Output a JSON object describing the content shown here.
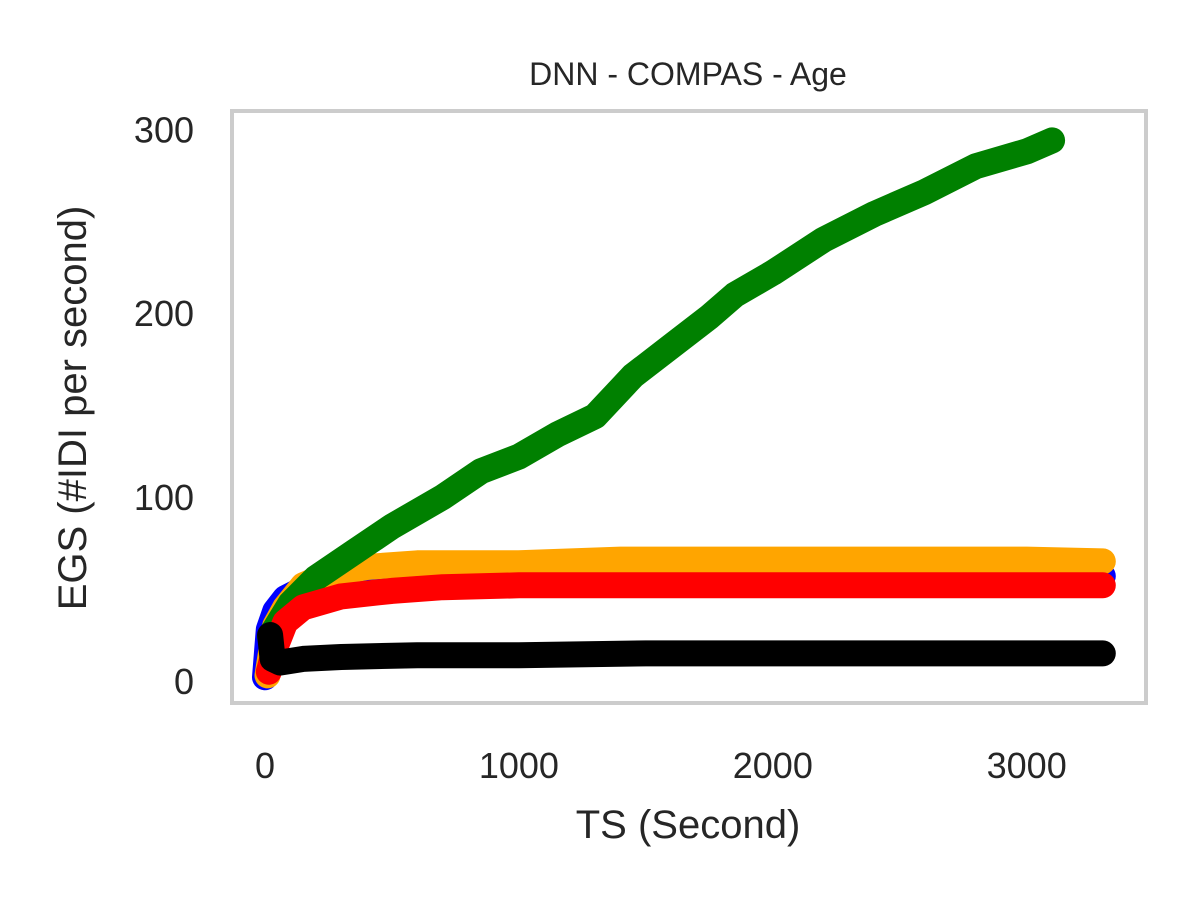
{
  "chart_data": {
    "type": "line",
    "title": "DNN - COMPAS - Age",
    "xlabel": "TS (Second)",
    "ylabel": "EGS (#IDI  per second)",
    "xlim": [
      -130,
      3470
    ],
    "ylim": [
      -12,
      310
    ],
    "xticks": [
      0,
      1000,
      2000,
      3000
    ],
    "yticks": [
      0,
      100,
      200,
      300
    ],
    "xtick_labels": [
      "0",
      "1000",
      "2000",
      "3000"
    ],
    "ytick_labels": [
      "0",
      "100",
      "200",
      "300"
    ],
    "grid": false,
    "legend": "none",
    "series": [
      {
        "color": "#0000ff",
        "points": [
          [
            0,
            2
          ],
          [
            15,
            28
          ],
          [
            40,
            38
          ],
          [
            80,
            45
          ],
          [
            150,
            50
          ],
          [
            300,
            55
          ],
          [
            600,
            57
          ],
          [
            1000,
            57
          ],
          [
            1500,
            57
          ],
          [
            2000,
            57
          ],
          [
            2500,
            57
          ],
          [
            3000,
            57
          ],
          [
            3300,
            57
          ]
        ]
      },
      {
        "color": "#ffa500",
        "points": [
          [
            10,
            3
          ],
          [
            40,
            30
          ],
          [
            80,
            40
          ],
          [
            150,
            52
          ],
          [
            250,
            58
          ],
          [
            400,
            62
          ],
          [
            600,
            64
          ],
          [
            800,
            64
          ],
          [
            1000,
            64
          ],
          [
            1400,
            66
          ],
          [
            2000,
            66
          ],
          [
            2500,
            66
          ],
          [
            3000,
            66
          ],
          [
            3300,
            65
          ]
        ]
      },
      {
        "color": "#008000",
        "points": [
          [
            20,
            24
          ],
          [
            100,
            42
          ],
          [
            200,
            56
          ],
          [
            350,
            70
          ],
          [
            500,
            84
          ],
          [
            700,
            100
          ],
          [
            850,
            114
          ],
          [
            1000,
            122
          ],
          [
            1150,
            134
          ],
          [
            1300,
            144
          ],
          [
            1450,
            166
          ],
          [
            1600,
            182
          ],
          [
            1750,
            198
          ],
          [
            1850,
            210
          ],
          [
            2000,
            222
          ],
          [
            2200,
            240
          ],
          [
            2400,
            254
          ],
          [
            2600,
            266
          ],
          [
            2800,
            280
          ],
          [
            3000,
            288
          ],
          [
            3100,
            294
          ]
        ]
      },
      {
        "color": "#ff0000",
        "points": [
          [
            15,
            5
          ],
          [
            40,
            18
          ],
          [
            80,
            32
          ],
          [
            150,
            40
          ],
          [
            300,
            46
          ],
          [
            500,
            49
          ],
          [
            700,
            51
          ],
          [
            1000,
            52
          ],
          [
            1500,
            52
          ],
          [
            2000,
            52
          ],
          [
            2500,
            52
          ],
          [
            3000,
            52
          ],
          [
            3300,
            52
          ]
        ]
      },
      {
        "color": "#000000",
        "points": [
          [
            20,
            25
          ],
          [
            30,
            12
          ],
          [
            60,
            10
          ],
          [
            150,
            12
          ],
          [
            300,
            13
          ],
          [
            600,
            14
          ],
          [
            1000,
            14
          ],
          [
            1500,
            15
          ],
          [
            2000,
            15
          ],
          [
            2500,
            15
          ],
          [
            3000,
            15
          ],
          [
            3300,
            15
          ]
        ]
      }
    ]
  }
}
